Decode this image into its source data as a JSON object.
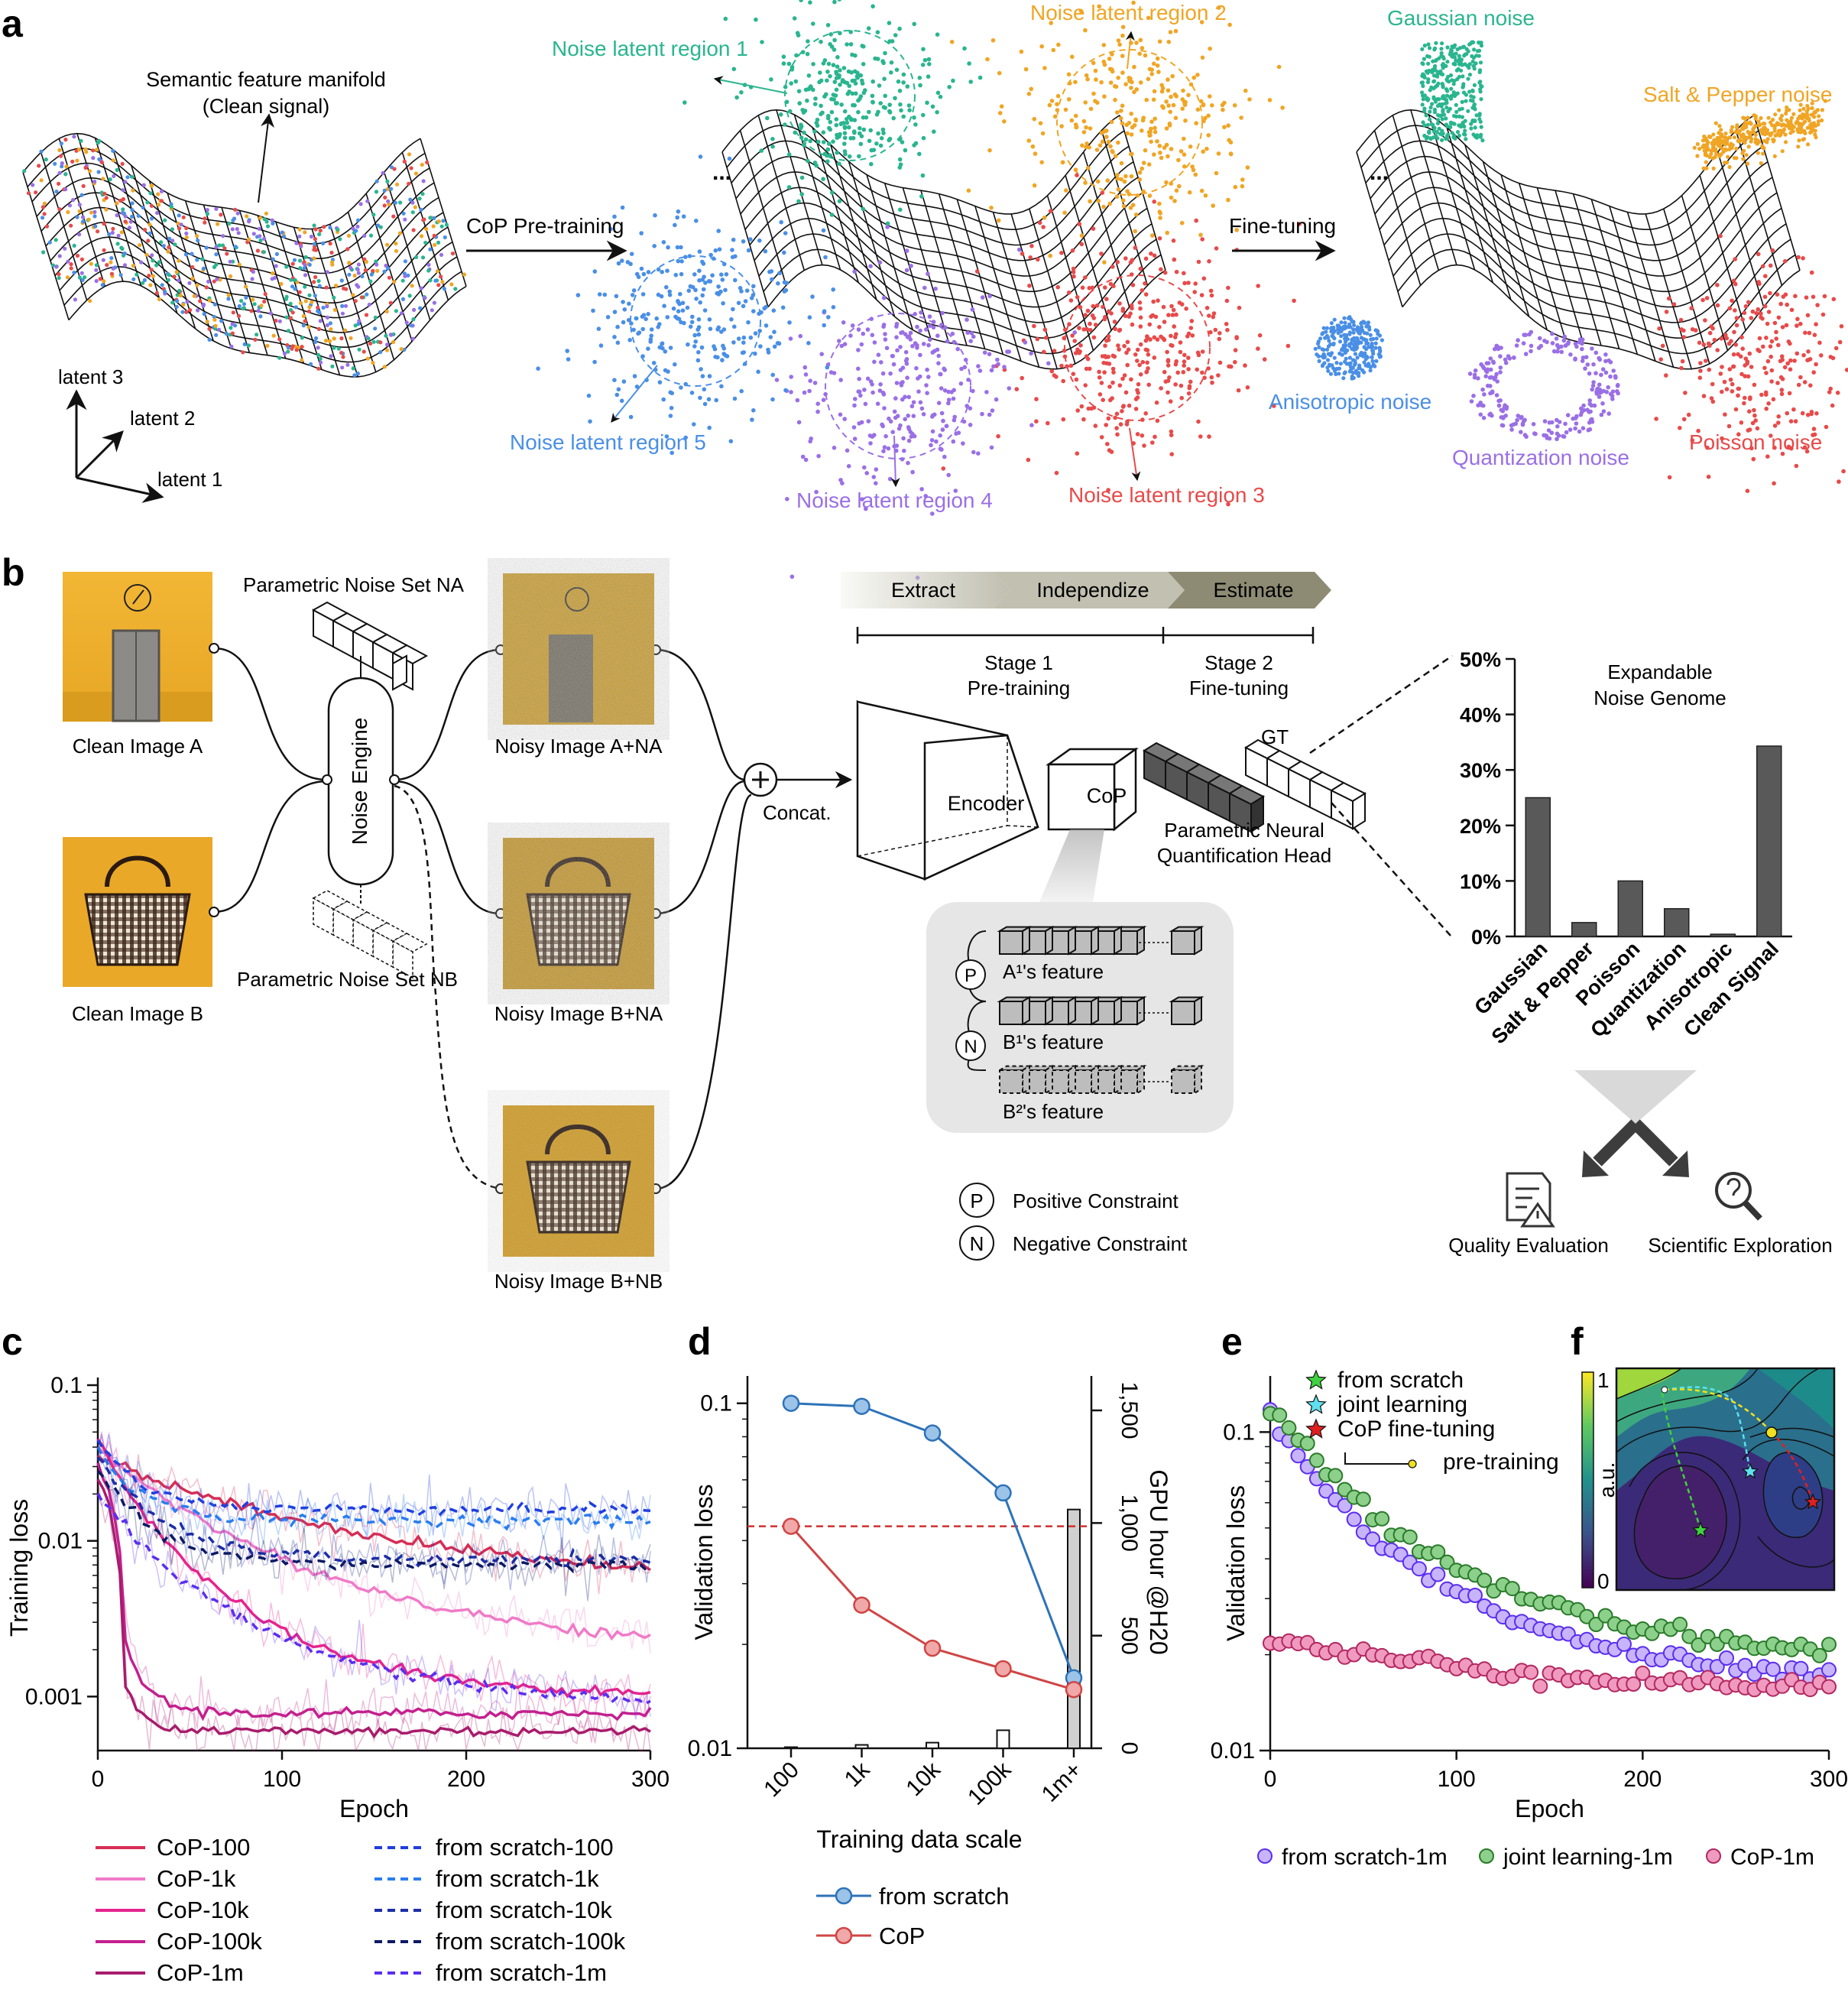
{
  "panels": {
    "a": "a",
    "b": "b",
    "c": "c",
    "d": "d",
    "e": "e",
    "f": "f"
  },
  "panel_a": {
    "manifold_title_1": "Semantic feature manifold",
    "manifold_title_2": "(Clean signal)",
    "axes": {
      "l1": "latent 1",
      "l2": "latent 2",
      "l3": "latent 3"
    },
    "arrow_pretrain": "CoP Pre-training",
    "arrow_finetune": "Fine-tuning",
    "ellipsis": "...",
    "regions": [
      {
        "label": "Noise latent region 1",
        "color": "#2ab58f"
      },
      {
        "label": "Noise latent region 2",
        "color": "#f0a524"
      },
      {
        "label": "Noise latent region 3",
        "color": "#e84a4a"
      },
      {
        "label": "Noise latent region 4",
        "color": "#9a6fe6"
      },
      {
        "label": "Noise latent region 5",
        "color": "#4a8fe6"
      }
    ],
    "noises": [
      {
        "label": "Gaussian noise",
        "color": "#2ab58f"
      },
      {
        "label": "Salt & Pepper noise",
        "color": "#f0a524"
      },
      {
        "label": "Anisotropic noise",
        "color": "#4a8fe6"
      },
      {
        "label": "Quantization noise",
        "color": "#9a6fe6"
      },
      {
        "label": "Poisson noise",
        "color": "#e84a4a"
      }
    ]
  },
  "panel_b": {
    "clean_a": "Clean Image A",
    "clean_b": "Clean Image B",
    "noise_set_a": "Parametric Noise Set NA",
    "noise_set_b": "Parametric Noise Set NB",
    "engine": "Noise Engine",
    "noisy_1": "Noisy Image A+NA",
    "noisy_2": "Noisy Image B+NA",
    "noisy_3": "Noisy Image B+NB",
    "concat": "Concat.",
    "stages": [
      "Extract",
      "Independize",
      "Estimate"
    ],
    "stage1_1": "Stage 1",
    "stage1_2": "Pre-training",
    "stage2_1": "Stage 2",
    "stage2_2": "Fine-tuning",
    "encoder": "Encoder",
    "cop": "CoP",
    "gt": "GT",
    "head_1": "Parametric Neural",
    "head_2": "Quantification Head",
    "feat_a": "A¹'s feature",
    "feat_b1": "B¹'s feature",
    "feat_b2": "B²'s feature",
    "p": "P",
    "n": "N",
    "pos": "Positive Constraint",
    "neg": "Negative Constraint",
    "genome_1": "Expandable",
    "genome_2": "Noise Genome",
    "quality": "Quality Evaluation",
    "science": "Scientific Exploration"
  },
  "panel_f": {
    "ylabel": "a.u.",
    "tick_top": "1",
    "tick_bot": "0"
  },
  "chart_data": [
    {
      "id": "b-genome",
      "type": "bar",
      "categories": [
        "Gaussian",
        "Salt & Pepper",
        "Poisson",
        "Quantization",
        "Anisotropic",
        "Clean Signal"
      ],
      "values": [
        25,
        2.5,
        10,
        5,
        0.4,
        34.3
      ],
      "ylim": [
        0,
        50
      ],
      "yticks": [
        "0%",
        "10%",
        "20%",
        "30%",
        "40%",
        "50%"
      ],
      "title": "Expandable Noise Genome"
    },
    {
      "id": "c-training",
      "type": "line",
      "xlabel": "Epoch",
      "ylabel": "Training loss",
      "xlim": [
        0,
        300
      ],
      "ylim": [
        0.00045,
        0.1
      ],
      "yscale": "log",
      "xticks": [
        "0",
        "100",
        "200",
        "300"
      ],
      "yticks": [
        "0.001",
        "0.01",
        "0.1"
      ],
      "series": [
        {
          "name": "CoP-100",
          "color": "#d62d55",
          "dash": false,
          "start": 0.035,
          "end": 0.0049,
          "tau": 0.55
        },
        {
          "name": "CoP-1k",
          "color": "#f07ac8",
          "dash": false,
          "start": 0.04,
          "end": 0.0017,
          "tau": 0.45
        },
        {
          "name": "CoP-10k",
          "color": "#e6248e",
          "dash": false,
          "start": 0.045,
          "end": 0.00097,
          "tau": 0.25
        },
        {
          "name": "CoP-100k",
          "color": "#c4208f",
          "dash": false,
          "start": 0.03,
          "end": 0.00078,
          "tau": 0.04
        },
        {
          "name": "CoP-1m",
          "color": "#a81c6c",
          "dash": false,
          "start": 0.025,
          "end": 0.0006,
          "tau": 0.03
        },
        {
          "name": "from scratch-100",
          "color": "#1f3de0",
          "dash": true,
          "start": 0.045,
          "end": 0.016,
          "tau": 0.08
        },
        {
          "name": "from scratch-1k",
          "color": "#2a7df0",
          "dash": true,
          "start": 0.04,
          "end": 0.0135,
          "tau": 0.08
        },
        {
          "name": "from scratch-10k",
          "color": "#1c2ea8",
          "dash": true,
          "start": 0.035,
          "end": 0.0075,
          "tau": 0.12
        },
        {
          "name": "from scratch-100k",
          "color": "#0c1a66",
          "dash": true,
          "start": 0.03,
          "end": 0.007,
          "tau": 0.1
        },
        {
          "name": "from scratch-1m",
          "color": "#5a2ef0",
          "dash": true,
          "start": 0.02,
          "end": 0.00085,
          "tau": 0.3
        }
      ]
    },
    {
      "id": "d-scale",
      "type": "line",
      "xlabel": "Training data scale",
      "ylabel": "Validation loss",
      "y2label": "GPU hour @H20",
      "categories": [
        "100",
        "1k",
        "10k",
        "100k",
        "1m+"
      ],
      "yscale": "log",
      "ylim": [
        0.01,
        0.12
      ],
      "yticks": [
        "0.01",
        "0.1"
      ],
      "y2ticks": [
        "0",
        "500",
        "1,000",
        "1,500"
      ],
      "y2lim": [
        0,
        1500
      ],
      "series": [
        {
          "name": "from scratch",
          "color": "#2d72b8",
          "fill": "#9cc4e8",
          "values": [
            0.1,
            0.098,
            0.082,
            0.055,
            0.016
          ]
        },
        {
          "name": "CoP",
          "color": "#d04545",
          "fill": "#f0a8a8",
          "values": [
            0.044,
            0.026,
            0.0195,
            0.017,
            0.0148
          ]
        }
      ],
      "gpu_hours": [
        5,
        15,
        25,
        80,
        1060
      ],
      "threshold": 0.044
    },
    {
      "id": "e-validation",
      "type": "scatter",
      "xlabel": "Epoch",
      "ylabel": "Validation loss",
      "xlim": [
        0,
        300
      ],
      "yscale": "log",
      "ylim": [
        0.01,
        0.15
      ],
      "xticks": [
        "0",
        "100",
        "200",
        "300"
      ],
      "yticks": [
        "0.01",
        "0.1"
      ],
      "series": [
        {
          "name": "from scratch-1m",
          "color": "#5a2ef0",
          "fill": "#c8b4fa",
          "start": 0.11,
          "end": 0.0155,
          "tau": 0.33
        },
        {
          "name": "joint learning-1m",
          "color": "#2a7a2a",
          "fill": "#8cd08c",
          "start": 0.12,
          "end": 0.0185,
          "tau": 0.35
        },
        {
          "name": "CoP-1m",
          "color": "#b22860",
          "fill": "#f09ac0",
          "start": 0.022,
          "end": 0.0145,
          "tau": 0.6
        }
      ],
      "legend_inset": [
        "from scratch",
        "joint learning",
        "CoP fine-tuning",
        "pre-training"
      ]
    }
  ]
}
